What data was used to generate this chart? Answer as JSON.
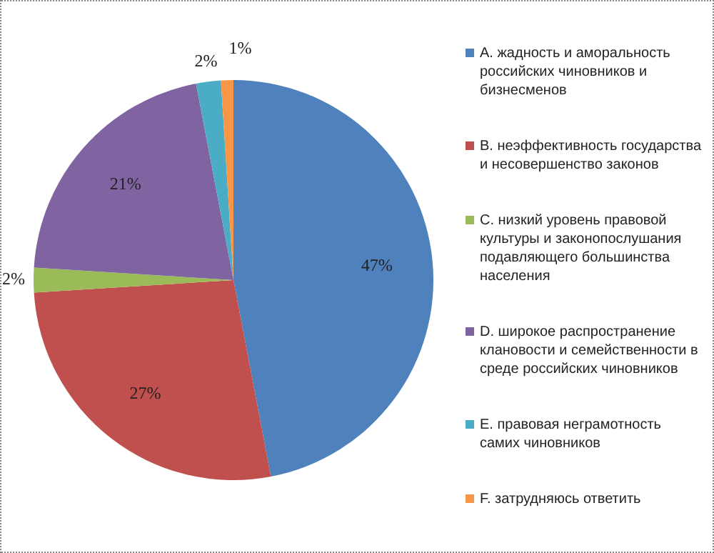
{
  "chart_data": {
    "type": "pie",
    "categories": [
      "A.     жадность и аморальность российских чиновников и бизнесменов",
      "B.     неэффективность государства и несовершенство законов",
      "C.     низкий уровень правовой культуры и законопослушания подавляющего большинства населения",
      "D.     широкое распространение клановости и семейственности в среде российских чиновников",
      "E.     правовая неграмотность самих чиновников",
      "F.     затрудняюсь ответить"
    ],
    "values": [
      47,
      27,
      2,
      21,
      2,
      1
    ],
    "colors": [
      "#4f81bd",
      "#c0504d",
      "#9bbb59",
      "#8064a2",
      "#4bacc6",
      "#f79646"
    ],
    "value_labels": [
      "47%",
      "27%",
      "2%",
      "21%",
      "2%",
      "1%"
    ],
    "legend": "right"
  }
}
